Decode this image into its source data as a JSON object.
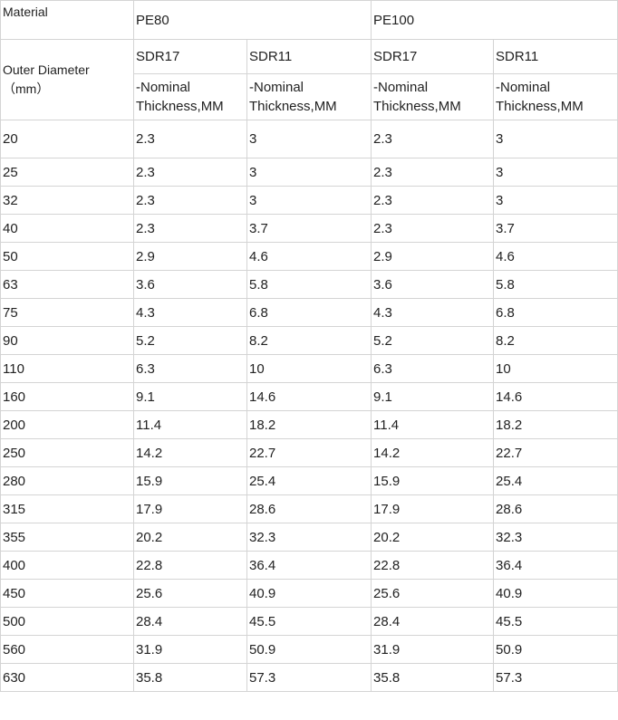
{
  "header": {
    "material_label": "Material",
    "outer_diameter_label": "Outer Diameter",
    "outer_diameter_unit": "（mm）",
    "materials": [
      "PE80",
      "PE100"
    ],
    "sdr": [
      "SDR17",
      "SDR11",
      "SDR17",
      "SDR11"
    ],
    "thickness_label_line1": "-Nominal",
    "thickness_label_line2": "Thickness,MM"
  },
  "rows": [
    [
      "20",
      "2.3",
      "3",
      "2.3",
      "3"
    ],
    [
      "25",
      "2.3",
      "3",
      "2.3",
      "3"
    ],
    [
      "32",
      "2.3",
      "3",
      "2.3",
      "3"
    ],
    [
      "40",
      "2.3",
      "3.7",
      "2.3",
      "3.7"
    ],
    [
      "50",
      "2.9",
      "4.6",
      "2.9",
      "4.6"
    ],
    [
      "63",
      "3.6",
      "5.8",
      "3.6",
      "5.8"
    ],
    [
      "75",
      "4.3",
      "6.8",
      "4.3",
      "6.8"
    ],
    [
      "90",
      "5.2",
      "8.2",
      "5.2",
      "8.2"
    ],
    [
      "110",
      "6.3",
      "10",
      "6.3",
      "10"
    ],
    [
      "160",
      "9.1",
      "14.6",
      "9.1",
      "14.6"
    ],
    [
      "200",
      "11.4",
      "18.2",
      "11.4",
      "18.2"
    ],
    [
      "250",
      "14.2",
      "22.7",
      "14.2",
      "22.7"
    ],
    [
      "280",
      "15.9",
      "25.4",
      "15.9",
      "25.4"
    ],
    [
      "315",
      "17.9",
      "28.6",
      "17.9",
      "28.6"
    ],
    [
      "355",
      "20.2",
      "32.3",
      "20.2",
      "32.3"
    ],
    [
      "400",
      "22.8",
      "36.4",
      "22.8",
      "36.4"
    ],
    [
      "450",
      "25.6",
      "40.9",
      "25.6",
      "40.9"
    ],
    [
      "500",
      "28.4",
      "45.5",
      "28.4",
      "45.5"
    ],
    [
      "560",
      "31.9",
      "50.9",
      "31.9",
      "50.9"
    ],
    [
      "630",
      "35.8",
      "57.3",
      "35.8",
      "57.3"
    ]
  ]
}
